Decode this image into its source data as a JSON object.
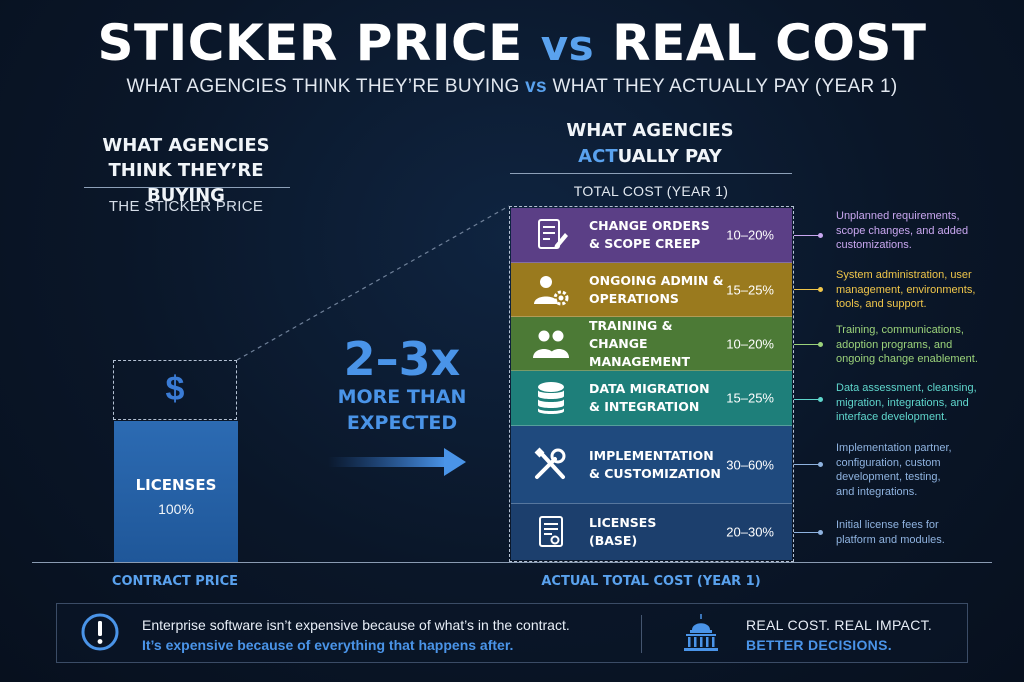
{
  "header": {
    "title_part1": "STICKER PRICE",
    "title_vs": "vs",
    "title_part2": "REAL COST",
    "subtitle_part1": "WHAT AGENCIES THINK THEY’RE BUYING",
    "subtitle_vs": "vs",
    "subtitle_part2": "WHAT THEY ACTUALLY PAY (YEAR 1)"
  },
  "left": {
    "heading_line1": "WHAT AGENCIES",
    "heading_line2": "THINK THEY’RE BUYING",
    "subheading": "THE STICKER PRICE",
    "dollar_symbol": "$",
    "bar_label": "LICENSES",
    "bar_percent": "100%",
    "footer_label": "CONTRACT PRICE"
  },
  "middle": {
    "multiplier": "2–3x",
    "caption_line1": "MORE THAN",
    "caption_line2": "EXPECTED"
  },
  "right": {
    "heading_line1": "WHAT AGENCIES",
    "heading_line2_highlight": "ACT",
    "heading_line2_rest": "UALLY PAY",
    "subheading": "TOTAL COST (YEAR 1)",
    "footer_label": "ACTUAL TOTAL COST (YEAR 1)",
    "segments": [
      {
        "label_line1": "CHANGE ORDERS",
        "label_line2": "& SCOPE CREEP",
        "range": "10–20%",
        "icon": "document-edit-icon",
        "color": "#5b3f86",
        "note_color": "#c9a7f0",
        "note_line1": "Unplanned requirements,",
        "note_line2": "scope changes, and added",
        "note_line3": "customizations.",
        "note_line4": ""
      },
      {
        "label_line1": "ONGOING ADMIN &",
        "label_line2": "OPERATIONS",
        "range": "15–25%",
        "icon": "user-gear-icon",
        "color": "#9a7a1e",
        "note_color": "#f0c64a",
        "note_line1": "System administration, user",
        "note_line2": "management, environments,",
        "note_line3": "tools, and support.",
        "note_line4": ""
      },
      {
        "label_line1": "TRAINING & CHANGE",
        "label_line2": "MANAGEMENT",
        "range": "10–20%",
        "icon": "people-icon",
        "color": "#4c7a36",
        "note_color": "#9bd27a",
        "note_line1": "Training, communications,",
        "note_line2": "adoption programs, and",
        "note_line3": "ongoing change enablement.",
        "note_line4": ""
      },
      {
        "label_line1": "DATA MIGRATION",
        "label_line2": "& INTEGRATION",
        "range": "15–25%",
        "icon": "database-icon",
        "color": "#1e7f7a",
        "note_color": "#5fd6cc",
        "note_line1": "Data assessment, cleansing,",
        "note_line2": "migration, integrations, and",
        "note_line3": "interface development.",
        "note_line4": ""
      },
      {
        "label_line1": "IMPLEMENTATION",
        "label_line2": "& CUSTOMIZATION",
        "range": "30–60%",
        "icon": "tools-icon",
        "color": "#1f4a7e",
        "note_color": "#8fb3e0",
        "note_line1": "Implementation partner,",
        "note_line2": "configuration, custom",
        "note_line3": "development, testing,",
        "note_line4": "and integrations."
      },
      {
        "label_line1": "LICENSES",
        "label_line2": "(BASE)",
        "range": "20–30%",
        "icon": "license-document-icon",
        "color": "#1c3f6d",
        "note_color": "#8fb3e0",
        "note_line1": "Initial license fees for",
        "note_line2": "platform and modules.",
        "note_line3": "",
        "note_line4": ""
      }
    ]
  },
  "footer": {
    "line1": "Enterprise software isn’t expensive because of what’s in the contract.",
    "line2": "It’s expensive because of everything that happens after.",
    "right_line1": "REAL COST. REAL IMPACT.",
    "right_line2": "BETTER DECISIONS.",
    "alert_icon": "exclamation-circle-icon",
    "building_icon": "capitol-building-icon"
  },
  "colors": {
    "accent_blue": "#4a94e8",
    "background": "#0a1628"
  }
}
